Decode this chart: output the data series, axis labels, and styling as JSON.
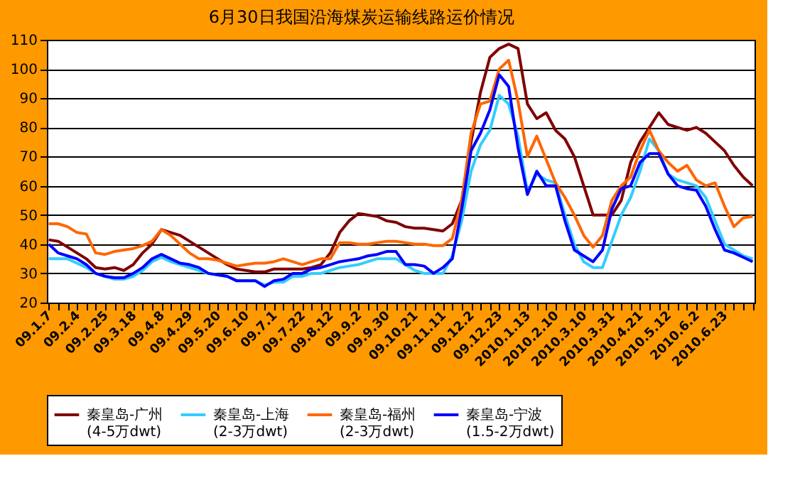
{
  "chart_data": {
    "type": "line",
    "title": "6月30日我国沿海煤炭运输线路运价情况",
    "categories": [
      "09.1.7",
      null,
      null,
      "09.2.4",
      null,
      null,
      "09.2.25",
      null,
      null,
      "09.3.18",
      null,
      null,
      "09.4.8",
      null,
      null,
      "09.4.29",
      null,
      null,
      "09.5.20",
      null,
      null,
      "09.6.10",
      null,
      null,
      "09.7.1",
      null,
      null,
      "09.7.22",
      null,
      null,
      "09.8.12",
      null,
      null,
      "09.9.2",
      null,
      null,
      "09.9.30",
      null,
      null,
      "09.10.21",
      null,
      null,
      "09.11.11",
      null,
      null,
      "09.12.2",
      null,
      null,
      "09.12.23",
      null,
      null,
      "2010.1.13",
      null,
      null,
      "2010.2.10",
      null,
      null,
      "2010.3.10",
      null,
      null,
      "2010.3.31",
      null,
      null,
      "2010.4.21",
      null,
      null,
      "2010.5.12",
      null,
      null,
      "2010.6.2",
      null,
      null,
      "2010.6.23",
      null,
      null,
      null
    ],
    "series": [
      {
        "name": "秦皇岛-广州 (4-5万dwt)",
        "color": "#800000",
        "values": [
          41.5,
          41,
          39,
          37,
          35,
          32,
          31.5,
          32,
          31,
          33,
          37,
          40,
          45,
          44,
          43,
          41,
          39,
          37,
          35,
          33,
          31.5,
          31,
          30.5,
          30.5,
          31.5,
          31.5,
          31.5,
          31.5,
          32,
          33,
          37,
          44,
          48,
          50.5,
          50,
          49.5,
          48,
          47.5,
          46,
          45.5,
          45.5,
          45,
          44.5,
          47,
          55,
          75,
          92,
          104,
          107,
          108.5,
          107,
          88,
          83,
          85,
          79,
          76,
          70,
          60,
          50,
          50,
          50,
          55,
          68,
          75,
          80,
          85,
          81,
          80,
          79,
          80,
          78,
          75,
          72,
          67,
          63,
          60
        ]
      },
      {
        "name": "秦皇岛-上海 (2-3万dwt)",
        "color": "#33ccff",
        "values": [
          35,
          35,
          35,
          33.5,
          32,
          30,
          29,
          28,
          28,
          29,
          31,
          34,
          35.5,
          34,
          33,
          32,
          31,
          30,
          29.5,
          29,
          27.5,
          27.5,
          27.5,
          26,
          27,
          27,
          29,
          29,
          30,
          30,
          31,
          32,
          32.5,
          33,
          34,
          35,
          35,
          35,
          33,
          31,
          30,
          30,
          30,
          36,
          48,
          65,
          74,
          79,
          91,
          88,
          77,
          58,
          64,
          62,
          61,
          50,
          40,
          34,
          32,
          32,
          41,
          50,
          56,
          65,
          76,
          72,
          64,
          62,
          61,
          60,
          56,
          48,
          40,
          38,
          36,
          35
        ]
      },
      {
        "name": "秦皇岛-福州 (2-3万dwt)",
        "color": "#ff6600",
        "values": [
          47,
          47,
          46,
          44,
          43.5,
          37,
          36.5,
          37.5,
          38,
          38.5,
          39.5,
          41,
          45,
          43,
          40,
          37,
          35,
          35,
          34.5,
          33.5,
          32.5,
          33,
          33.5,
          33.5,
          34,
          35,
          34,
          33,
          34,
          35,
          35,
          40.5,
          40.5,
          40,
          40,
          40.5,
          41,
          41,
          40.5,
          40,
          40,
          39.5,
          39.5,
          42,
          55,
          78,
          88,
          89,
          100,
          103,
          89,
          70,
          77,
          69,
          61,
          56,
          50,
          43,
          39,
          43,
          55,
          60,
          63,
          72,
          79,
          72,
          68,
          65,
          67,
          62,
          60,
          61,
          53,
          46,
          49,
          49.5
        ]
      },
      {
        "name": "秦皇岛-宁波 (1.5-2万dwt)",
        "color": "#0000ff",
        "values": [
          40,
          37,
          36,
          35,
          33,
          30,
          29,
          28.5,
          28.5,
          30,
          32,
          35,
          36.5,
          35,
          33.5,
          33,
          32,
          30,
          29.5,
          29,
          27.5,
          27.5,
          27.5,
          25.5,
          27.5,
          28,
          30,
          30,
          31.5,
          32,
          33,
          34,
          34.5,
          35,
          36,
          36.5,
          37.5,
          37.5,
          33,
          33,
          32.5,
          30,
          32,
          35,
          52,
          72,
          78,
          86,
          98,
          94,
          73,
          57,
          65,
          60,
          60,
          48,
          38,
          36,
          34,
          38,
          52,
          59,
          60,
          68,
          71,
          71,
          64,
          60,
          59,
          58.5,
          53,
          45,
          38,
          37,
          35.5,
          34
        ]
      }
    ],
    "ylim": [
      20,
      110
    ],
    "yticks": [
      20,
      30,
      40,
      50,
      60,
      70,
      80,
      90,
      100,
      110
    ],
    "grid": "y",
    "legend": "bottom",
    "marker": "none",
    "line_style": "solid"
  }
}
